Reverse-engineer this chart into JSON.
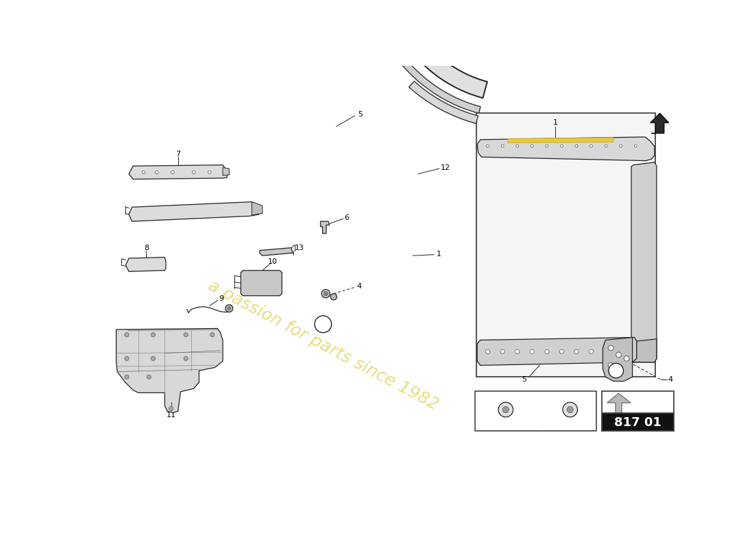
{
  "page_code": "817 01",
  "background_color": "#ffffff",
  "watermark_text": "a passion for parts since 1982",
  "watermark_color": "#e8d870",
  "label_color": "#000000",
  "line_color": "#000000",
  "part_fill": "#e8e8e8",
  "part_edge": "#222222",
  "dark_fill": "#333333"
}
